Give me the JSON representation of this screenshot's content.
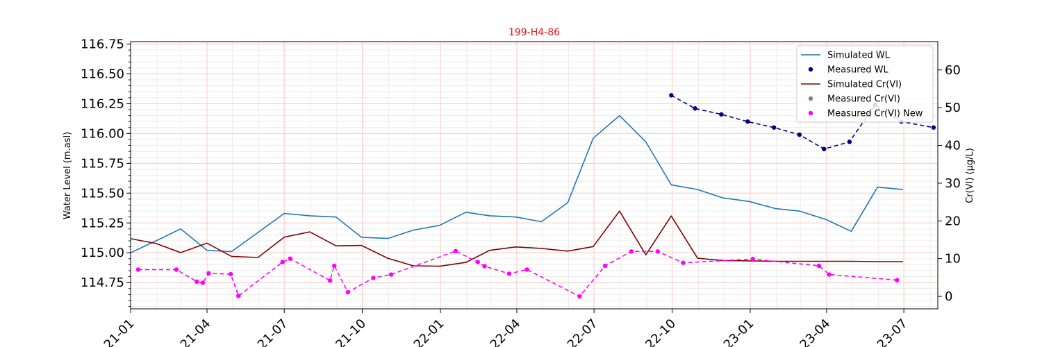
{
  "chart_data": {
    "type": "line",
    "title": "199-H4-86",
    "ylabel_left": "Water Level (m.asl)",
    "ylabel_right": "Cr(VI) (µg/L)",
    "x_ticks": [
      "2021-01",
      "2021-04",
      "2021-07",
      "2021-10",
      "2022-01",
      "2022-04",
      "2022-07",
      "2022-10",
      "2023-01",
      "2023-04",
      "2023-07"
    ],
    "x_tick_display": [
      "21-01",
      "21-04",
      "21-07",
      "21-10",
      "22-01",
      "22-04",
      "22-07",
      "22-10",
      "23-01",
      "23-04",
      "23-07"
    ],
    "xlim": [
      "2021-01-01",
      "2023-08-10"
    ],
    "ylim_left": [
      114.53,
      116.77
    ],
    "yticks_left": [
      "114.75",
      "115.00",
      "115.25",
      "115.50",
      "115.75",
      "116.00",
      "116.25",
      "116.50",
      "116.75"
    ],
    "ylim_right": [
      -3.3,
      67.5
    ],
    "yticks_right": [
      "0",
      "10",
      "20",
      "30",
      "40",
      "50",
      "60"
    ],
    "grid": true,
    "legend_position": "upper right",
    "colors": {
      "simulated_wl": "#1f77b4",
      "measured_wl": "#000080",
      "simulated_cr": "#800000",
      "measured_cr": "#808080",
      "measured_cr_new": "#ff00ff",
      "grid_major": "#ffc8c8",
      "grid_minor": "#ececec"
    },
    "series": [
      {
        "name": "Simulated WL",
        "axis": "left",
        "style": "line",
        "x": [
          "2021-01-01",
          "2021-01-31",
          "2021-03-01",
          "2021-04-01",
          "2021-04-30",
          "2021-05-31",
          "2021-07-01",
          "2021-07-31",
          "2021-08-31",
          "2021-09-30",
          "2021-10-31",
          "2021-11-30",
          "2021-12-31",
          "2022-01-31",
          "2022-02-28",
          "2022-03-31",
          "2022-04-30",
          "2022-05-31",
          "2022-06-30",
          "2022-07-31",
          "2022-08-31",
          "2022-09-30",
          "2022-10-31",
          "2022-11-30",
          "2022-12-31",
          "2023-01-31",
          "2023-02-28",
          "2023-03-31",
          "2023-04-30",
          "2023-05-31",
          "2023-06-30"
        ],
        "y": [
          115.0,
          115.1,
          115.2,
          115.02,
          115.01,
          115.17,
          115.33,
          115.31,
          115.3,
          115.13,
          115.12,
          115.19,
          115.23,
          115.34,
          115.31,
          115.3,
          115.26,
          115.42,
          115.96,
          116.15,
          115.93,
          115.57,
          115.53,
          115.46,
          115.43,
          115.37,
          115.35,
          115.28,
          115.18,
          115.55,
          115.53
        ]
      },
      {
        "name": "Measured WL",
        "axis": "left",
        "style": "dashed-markers",
        "x": [
          "2022-09-30",
          "2022-10-28",
          "2022-11-28",
          "2022-12-29",
          "2023-01-29",
          "2023-02-28",
          "2023-03-29",
          "2023-04-28",
          "2023-05-28",
          "2023-06-28",
          "2023-08-05"
        ],
        "y": [
          116.32,
          116.21,
          116.16,
          116.1,
          116.05,
          115.99,
          115.87,
          115.93,
          116.24,
          116.1,
          116.05
        ]
      },
      {
        "name": "Simulated Cr(VI)",
        "axis": "right",
        "style": "line",
        "x": [
          "2021-01-01",
          "2021-01-31",
          "2021-03-01",
          "2021-04-01",
          "2021-04-30",
          "2021-05-31",
          "2021-07-01",
          "2021-07-31",
          "2021-08-31",
          "2021-09-30",
          "2021-10-31",
          "2021-11-30",
          "2021-12-31",
          "2022-01-31",
          "2022-02-28",
          "2022-03-31",
          "2022-04-30",
          "2022-05-31",
          "2022-06-30",
          "2022-07-31",
          "2022-08-31",
          "2022-09-30",
          "2022-10-31",
          "2022-11-30",
          "2022-12-31",
          "2023-01-31",
          "2023-02-28",
          "2023-03-31",
          "2023-04-30",
          "2023-05-31",
          "2023-06-30"
        ],
        "y": [
          15.3,
          14,
          11.6,
          14.1,
          10.6,
          10.3,
          15.7,
          17.1,
          13.4,
          13.5,
          10.1,
          8.1,
          8.0,
          9.0,
          12.2,
          13.1,
          12.7,
          12.0,
          13.2,
          22.6,
          11.0,
          21.3,
          10.1,
          9.5,
          9.4,
          9.3,
          9.3,
          9.3,
          9.3,
          9.2,
          9.2
        ]
      },
      {
        "name": "Measured Cr(VI)",
        "axis": "right",
        "style": "markers",
        "x": [],
        "y": []
      },
      {
        "name": "Measured Cr(VI) New",
        "axis": "right",
        "style": "dashed-markers",
        "x": [
          "2021-01-10",
          "2021-02-24",
          "2021-03-20",
          "2021-03-27",
          "2021-04-03",
          "2021-04-29",
          "2021-05-08",
          "2021-06-29",
          "2021-07-08",
          "2021-08-24",
          "2021-08-29",
          "2021-09-14",
          "2021-10-14",
          "2021-11-04",
          "2022-01-19",
          "2022-02-14",
          "2022-02-22",
          "2022-03-23",
          "2022-04-13",
          "2022-06-14",
          "2022-07-14",
          "2022-08-14",
          "2022-09-14",
          "2022-10-14",
          "2023-01-04",
          "2023-03-23",
          "2023-04-04",
          "2023-06-23"
        ],
        "y": [
          7.1,
          7.1,
          3.9,
          3.6,
          6.1,
          5.9,
          0.1,
          9.1,
          10.0,
          4.2,
          8.1,
          1.1,
          4.9,
          5.8,
          12.0,
          9.1,
          8.0,
          6.0,
          7.1,
          0.0,
          8.1,
          11.9,
          11.9,
          8.9,
          9.9,
          8.1,
          5.8,
          4.3
        ]
      }
    ]
  }
}
